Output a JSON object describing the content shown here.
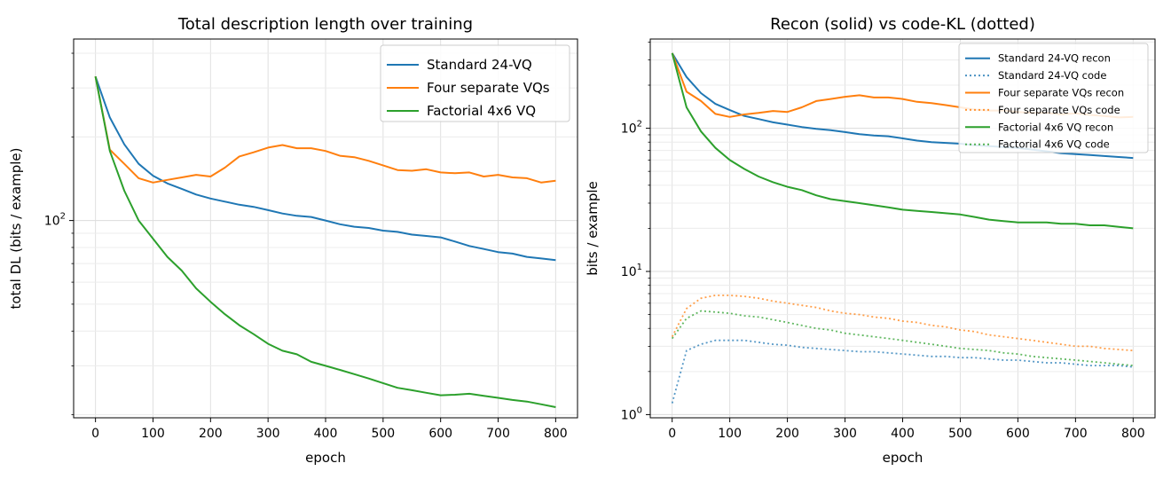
{
  "chart_data": [
    {
      "type": "line",
      "title": "Total description length over training",
      "xlabel": "epoch",
      "ylabel": "total DL (bits / example)",
      "yscale": "log",
      "xlim": [
        -38,
        838
      ],
      "ylim": [
        19.5,
        450
      ],
      "xticks": [
        0,
        100,
        200,
        300,
        400,
        500,
        600,
        700,
        800
      ],
      "yticks": [
        {
          "value": 100,
          "base": "10",
          "exp": "2"
        }
      ],
      "grid": true,
      "legend_position": "top-right",
      "x": [
        0,
        25,
        50,
        75,
        100,
        125,
        150,
        175,
        200,
        225,
        250,
        275,
        300,
        325,
        350,
        375,
        400,
        425,
        450,
        475,
        500,
        525,
        550,
        575,
        600,
        625,
        650,
        675,
        700,
        725,
        750,
        775,
        800
      ],
      "series": [
        {
          "name": "Standard 24-VQ",
          "color": "#1f77b4",
          "values": [
            330,
            235,
            188,
            160,
            145,
            136,
            130,
            124,
            120,
            117,
            114,
            112,
            109,
            106,
            104,
            103,
            100,
            97,
            95,
            94,
            92,
            91,
            89,
            88,
            87,
            84,
            81,
            79,
            77,
            76,
            74,
            73,
            72
          ]
        },
        {
          "name": "Four separate VQs",
          "color": "#ff7f0e",
          "values": [
            330,
            180,
            160,
            142,
            137,
            140,
            143,
            146,
            144,
            155,
            170,
            176,
            183,
            187,
            182,
            182,
            178,
            171,
            169,
            164,
            158,
            152,
            151,
            153,
            149,
            148,
            149,
            144,
            146,
            143,
            142,
            137,
            139
          ]
        },
        {
          "name": "Factorial 4x6 VQ",
          "color": "#2ca02c",
          "values": [
            330,
            178,
            128,
            100,
            86,
            74,
            66,
            57,
            51,
            46,
            42,
            39,
            36,
            34,
            33,
            31,
            30,
            29,
            28,
            27,
            26,
            25,
            24.5,
            24,
            23.5,
            23.6,
            23.8,
            23.4,
            23,
            22.6,
            22.3,
            21.8,
            21.3
          ]
        }
      ]
    },
    {
      "type": "line",
      "title": "Recon (solid) vs code-KL (dotted)",
      "xlabel": "epoch",
      "ylabel": "bits / example",
      "yscale": "log",
      "xlim": [
        -38,
        838
      ],
      "ylim": [
        0.95,
        420
      ],
      "xticks": [
        0,
        100,
        200,
        300,
        400,
        500,
        600,
        700,
        800
      ],
      "yticks": [
        {
          "value": 1,
          "base": "10",
          "exp": "0"
        },
        {
          "value": 10,
          "base": "10",
          "exp": "1"
        },
        {
          "value": 100,
          "base": "10",
          "exp": "2"
        }
      ],
      "grid": true,
      "legend_position": "top-right",
      "x": [
        0,
        25,
        50,
        75,
        100,
        125,
        150,
        175,
        200,
        225,
        250,
        275,
        300,
        325,
        350,
        375,
        400,
        425,
        450,
        475,
        500,
        525,
        550,
        575,
        600,
        625,
        650,
        675,
        700,
        725,
        750,
        775,
        800
      ],
      "series": [
        {
          "name": "Standard 24-VQ recon",
          "color": "#1f77b4",
          "style": "solid",
          "values": [
            335,
            228,
            176,
            148,
            134,
            122,
            116,
            110,
            106,
            102,
            99,
            97,
            94,
            91,
            89,
            88,
            85,
            82,
            80,
            79,
            78,
            76,
            75,
            74,
            73,
            71,
            69,
            67,
            66,
            65,
            64,
            63,
            62
          ]
        },
        {
          "name": "Standard 24-VQ code",
          "color": "#1f77b4",
          "style": "dotted",
          "values": [
            1.2,
            2.8,
            3.1,
            3.3,
            3.3,
            3.3,
            3.2,
            3.1,
            3.05,
            2.95,
            2.9,
            2.85,
            2.8,
            2.75,
            2.75,
            2.7,
            2.65,
            2.6,
            2.55,
            2.55,
            2.5,
            2.5,
            2.45,
            2.4,
            2.4,
            2.35,
            2.3,
            2.3,
            2.25,
            2.2,
            2.2,
            2.2,
            2.15
          ]
        },
        {
          "name": "Four separate VQs recon",
          "color": "#ff7f0e",
          "style": "solid",
          "values": [
            335,
            180,
            155,
            126,
            120,
            125,
            128,
            132,
            130,
            140,
            155,
            160,
            166,
            170,
            164,
            164,
            160,
            153,
            150,
            145,
            140,
            135,
            133,
            133,
            130,
            128,
            128,
            125,
            127,
            124,
            122,
            119,
            120
          ]
        },
        {
          "name": "Four separate VQs code",
          "color": "#ff7f0e",
          "style": "dotted",
          "values": [
            3.5,
            5.5,
            6.5,
            6.8,
            6.8,
            6.7,
            6.5,
            6.2,
            6.0,
            5.8,
            5.6,
            5.3,
            5.1,
            5.0,
            4.8,
            4.7,
            4.5,
            4.4,
            4.2,
            4.1,
            3.9,
            3.8,
            3.6,
            3.5,
            3.4,
            3.3,
            3.2,
            3.1,
            3.0,
            3.0,
            2.9,
            2.85,
            2.8
          ]
        },
        {
          "name": "Factorial 4x6 VQ recon",
          "color": "#2ca02c",
          "style": "solid",
          "values": [
            335,
            140,
            95,
            73,
            60,
            52,
            46,
            42,
            39,
            37,
            34,
            32,
            31,
            30,
            29,
            28,
            27,
            26.5,
            26,
            25.5,
            25,
            24,
            23,
            22.5,
            22,
            22,
            22,
            21.5,
            21.5,
            21,
            21,
            20.5,
            20
          ]
        },
        {
          "name": "Factorial 4x6 VQ code",
          "color": "#2ca02c",
          "style": "dotted",
          "values": [
            3.4,
            4.7,
            5.3,
            5.2,
            5.1,
            4.9,
            4.8,
            4.6,
            4.4,
            4.2,
            4.0,
            3.9,
            3.7,
            3.6,
            3.5,
            3.4,
            3.3,
            3.2,
            3.1,
            3.0,
            2.9,
            2.85,
            2.8,
            2.7,
            2.65,
            2.55,
            2.5,
            2.45,
            2.4,
            2.35,
            2.3,
            2.25,
            2.2
          ]
        }
      ]
    }
  ]
}
